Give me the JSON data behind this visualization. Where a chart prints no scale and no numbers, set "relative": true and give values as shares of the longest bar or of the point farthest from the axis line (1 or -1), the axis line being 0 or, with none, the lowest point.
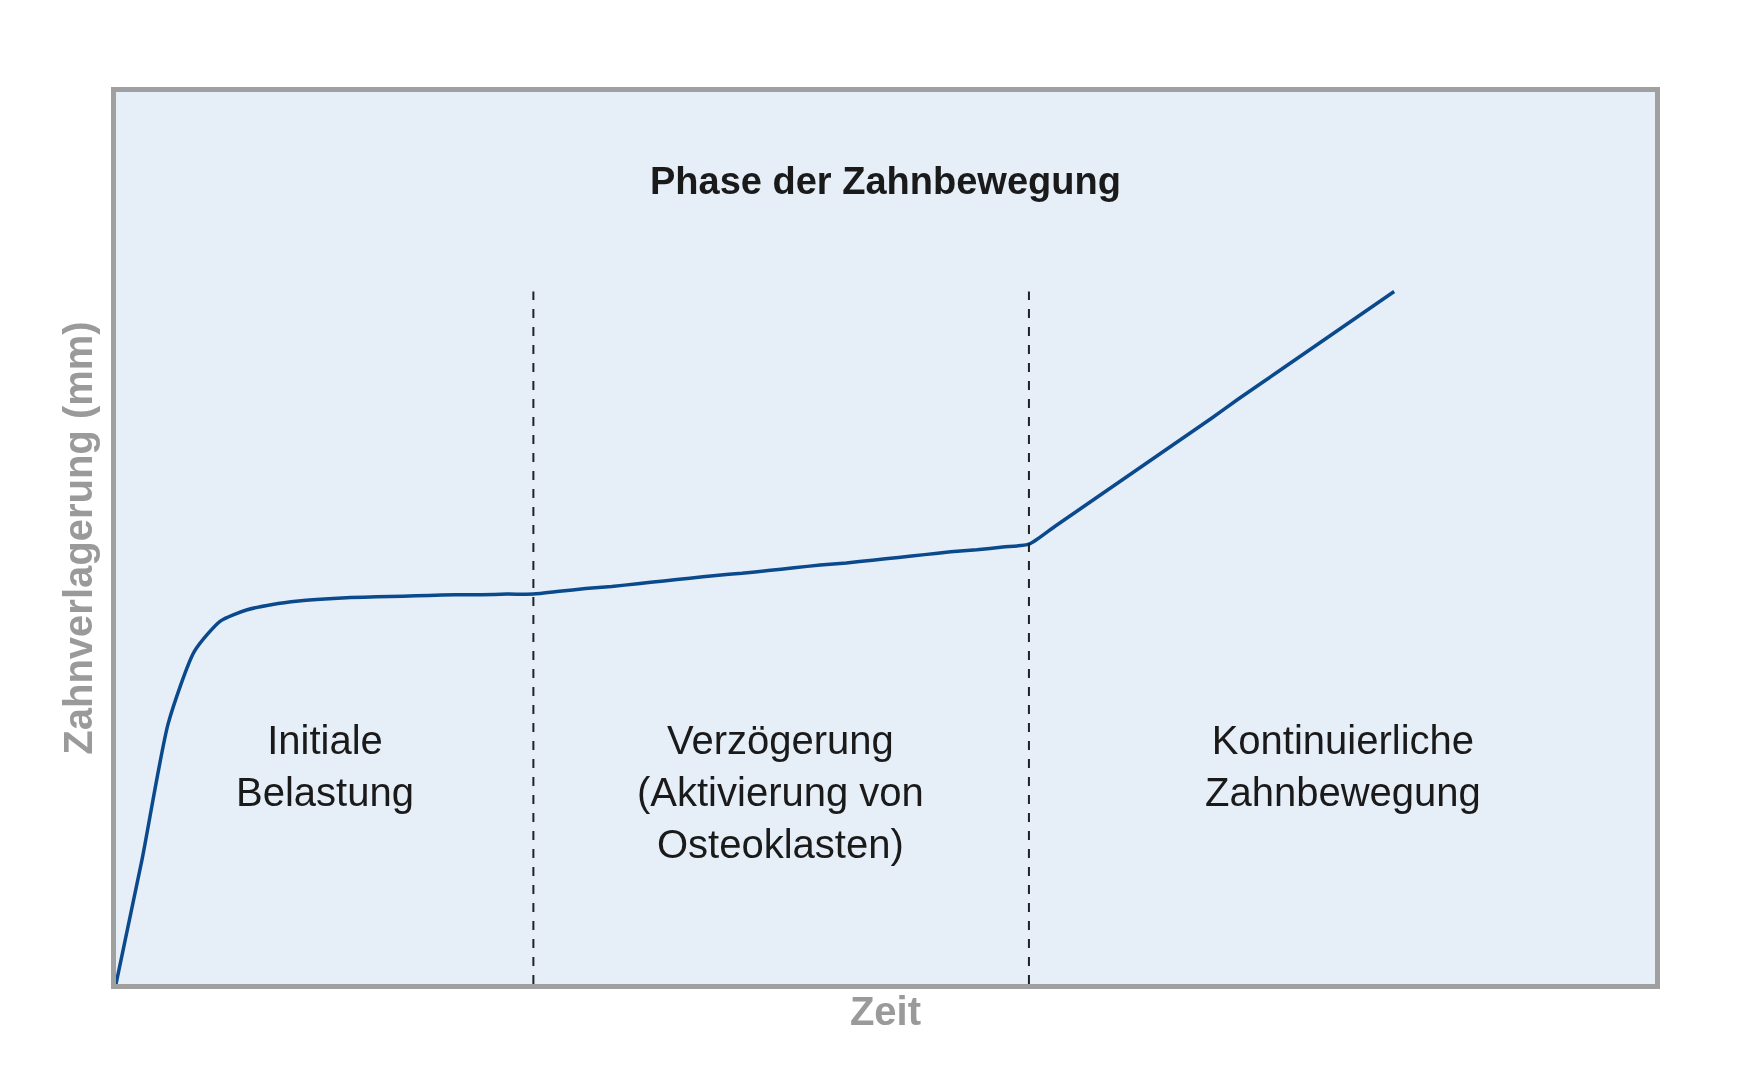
{
  "chart_data": {
    "type": "line",
    "title": "Phase der Zahnbewegung",
    "xlabel": "Zeit",
    "ylabel": "Zahnverlagerung (mm)",
    "relative": true,
    "grid": false,
    "marker": "none",
    "line_style": "solid",
    "categories": [
      null,
      null,
      null,
      null,
      null,
      null,
      null,
      null,
      null,
      null,
      null,
      null,
      null,
      null,
      null,
      null,
      null,
      null,
      null,
      null,
      null,
      null,
      null,
      null,
      null,
      null,
      null,
      null,
      null,
      null,
      null,
      null,
      null,
      null,
      null,
      null,
      null,
      null,
      null,
      null,
      null,
      null,
      null,
      null,
      null,
      null,
      null,
      null,
      null,
      null,
      null,
      null,
      null,
      null,
      null,
      null,
      null,
      null,
      null,
      null
    ],
    "series": [
      {
        "color": "#0a4a8c",
        "values": [
          0,
          0.18,
          0.376,
          0.48,
          0.524,
          0.54,
          0.548,
          0.553,
          0.556,
          0.558,
          0.559,
          0.56,
          0.561,
          0.562,
          0.562,
          0.563,
          0.563,
          0.567,
          0.571,
          0.574,
          0.578,
          0.582,
          0.586,
          0.59,
          0.593,
          0.597,
          0.601,
          0.605,
          0.608,
          0.612,
          0.616,
          0.62,
          0.624,
          0.627,
          0.631,
          0.635,
          0.661,
          0.687,
          0.713,
          0.739,
          0.765,
          0.791,
          0.817,
          0.844,
          0.87,
          0.896,
          0.922,
          0.948,
          0.974,
          1,
          null,
          null,
          null,
          null,
          null,
          null,
          null,
          null,
          null,
          null
        ]
      }
    ],
    "annotations": [
      "Initiale\nBelastung",
      "Verzögerung\n(Aktivierung von\nOsteoklasten)",
      "Kontinuierliche\nZahnbewegung"
    ]
  }
}
